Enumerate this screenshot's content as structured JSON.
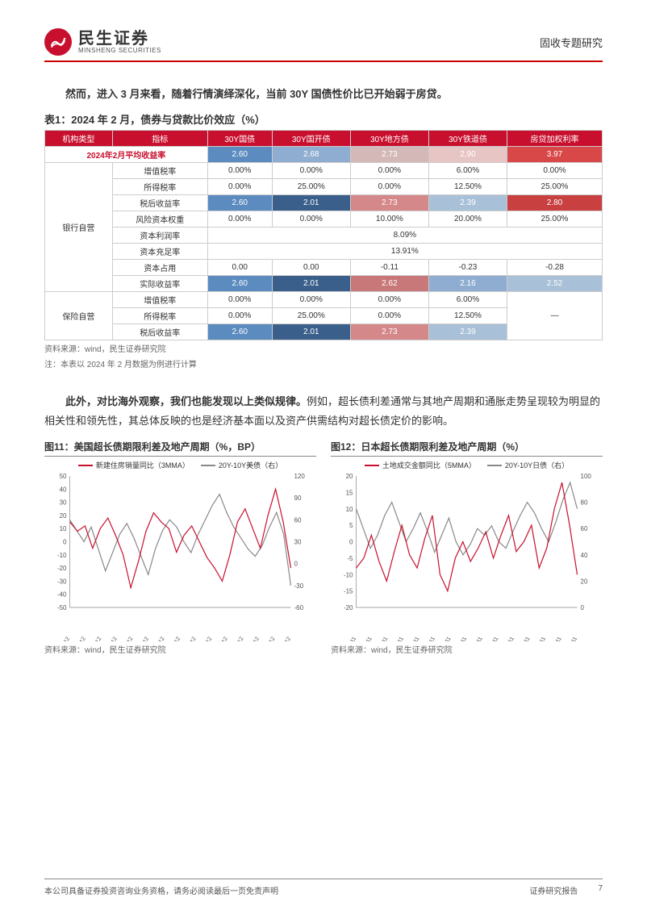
{
  "header": {
    "logo_cn": "民生证券",
    "logo_en": "MINSHENG SECURITIES",
    "doc_type": "固收专题研究"
  },
  "para1_bold": "然而，进入 3 月来看，随着行情演绎深化，当前 30Y 国债性价比已开始弱于房贷。",
  "table1": {
    "title": "表1：2024 年 2 月，债券与贷款比价效应（%）",
    "headers": [
      "机构类型",
      "指标",
      "30Y国债",
      "30Y国开债",
      "30Y地方债",
      "30Y铁道债",
      "房贷加权利率"
    ],
    "avg_row_label": "2024年2月平均收益率",
    "cat1": "银行自营",
    "cat2": "保险自营",
    "rows_bank": [
      {
        "label": "增值税率",
        "v": [
          "0.00%",
          "0.00%",
          "0.00%",
          "6.00%",
          "0.00%"
        ]
      },
      {
        "label": "所得税率",
        "v": [
          "0.00%",
          "25.00%",
          "0.00%",
          "12.50%",
          "25.00%"
        ]
      },
      {
        "label": "税后收益率",
        "v": [
          "2.60",
          "2.01",
          "2.73",
          "2.39",
          "2.80"
        ]
      },
      {
        "label": "风险资本权重",
        "v": [
          "0.00%",
          "0.00%",
          "10.00%",
          "20.00%",
          "25.00%"
        ]
      },
      {
        "label": "资本利润率",
        "v": [
          "",
          "",
          "8.09%",
          "",
          ""
        ]
      },
      {
        "label": "资本充足率",
        "v": [
          "",
          "",
          "13.91%",
          "",
          ""
        ]
      },
      {
        "label": "资本占用",
        "v": [
          "0.00",
          "0.00",
          "-0.11",
          "-0.23",
          "-0.28"
        ]
      },
      {
        "label": "实际收益率",
        "v": [
          "2.60",
          "2.01",
          "2.62",
          "2.16",
          "2.52"
        ]
      }
    ],
    "rows_ins": [
      {
        "label": "增值税率",
        "v": [
          "0.00%",
          "0.00%",
          "0.00%",
          "6.00%",
          ""
        ]
      },
      {
        "label": "所得税率",
        "v": [
          "0.00%",
          "25.00%",
          "0.00%",
          "12.50%",
          "—"
        ]
      },
      {
        "label": "税后收益率",
        "v": [
          "2.60",
          "2.01",
          "2.73",
          "2.39",
          ""
        ]
      }
    ],
    "avg_values": [
      "2.60",
      "2.68",
      "2.73",
      "2.90",
      "3.97"
    ],
    "cell_colors": {
      "avg": [
        "#5b8bbf",
        "#8fadd1",
        "#d4b8b8",
        "#e8c5c5",
        "#d94848"
      ],
      "bank_shouyi": [
        "#5b8bbf",
        "#3a5f8a",
        "#d4888a",
        "#a8c0d8",
        "#c84040"
      ],
      "bank_shiji": [
        "#5b8bbf",
        "#3a5f8a",
        "#c87878",
        "#8fadd1",
        "#a8c0d8"
      ],
      "ins_shouyi": [
        "#5b8bbf",
        "#3a5f8a",
        "#d4888a",
        "#a8c0d8",
        ""
      ]
    },
    "source": "资料来源：wind，民生证券研究院",
    "note": "注：本表以 2024 年 2 月数据为例进行计算"
  },
  "para2": {
    "bold": "此外，对比海外观察，我们也能发现以上类似规律。",
    "rest": "例如，超长债利差通常与其地产周期和通胀走势呈现较为明显的相关性和领先性，其总体反映的也是经济基本面以及资产供需结构对超长债定价的影响。"
  },
  "chart11": {
    "title": "图11：美国超长债期限利差及地产周期（%，BP）",
    "legend": [
      {
        "label": "新建住房销量同比（3MMA）",
        "color": "#c8102e"
      },
      {
        "label": "20Y-10Y美债（右）",
        "color": "#888888"
      }
    ],
    "y_left": {
      "min": -50,
      "max": 50,
      "step": 10
    },
    "y_right": {
      "min": -60,
      "max": 120,
      "step": 30
    },
    "x_labels": [
      "1994/12",
      "1996/12",
      "1998/12",
      "2000/12",
      "2002/12",
      "2004/12",
      "2006/12",
      "2008/12",
      "2010/12",
      "2012/12",
      "2014/12",
      "2016/12",
      "2018/12",
      "2020/12",
      "2022/12"
    ],
    "series_red": [
      15,
      8,
      12,
      -5,
      10,
      18,
      5,
      -10,
      -35,
      -15,
      8,
      22,
      15,
      10,
      -8,
      5,
      12,
      0,
      -12,
      -20,
      -30,
      -10,
      15,
      25,
      10,
      -5,
      20,
      40,
      15,
      -20
    ],
    "series_gray": [
      60,
      45,
      30,
      50,
      20,
      -10,
      15,
      40,
      55,
      35,
      10,
      -15,
      20,
      45,
      60,
      50,
      30,
      15,
      40,
      60,
      80,
      95,
      70,
      50,
      35,
      20,
      10,
      25,
      50,
      70,
      40,
      -30
    ],
    "source": "资料来源：wind，民生证券研究院"
  },
  "chart12": {
    "title": "图12：日本超长债期限利差及地产周期（%）",
    "legend": [
      {
        "label": "土地成交金额同比（5MMA）",
        "color": "#c8102e"
      },
      {
        "label": "20Y-10Y日债（右）",
        "color": "#888888"
      }
    ],
    "y_left": {
      "min": -20,
      "max": 20,
      "step": 5
    },
    "y_right": {
      "min": 0,
      "max": 100,
      "step": 20
    },
    "x_labels": [
      "1994/11",
      "1996/11",
      "1998/11",
      "2000/11",
      "2002/11",
      "2004/11",
      "2006/11",
      "2008/11",
      "2010/11",
      "2012/11",
      "2014/11",
      "2016/11",
      "2018/11",
      "2020/11",
      "2022/11"
    ],
    "series_red": [
      -8,
      -5,
      2,
      -6,
      -12,
      -3,
      5,
      -4,
      -8,
      1,
      8,
      -10,
      -15,
      -5,
      0,
      -6,
      -2,
      3,
      -5,
      2,
      8,
      -3,
      0,
      5,
      -8,
      -2,
      10,
      18,
      5,
      -10
    ],
    "series_gray": [
      75,
      60,
      45,
      55,
      70,
      80,
      65,
      50,
      60,
      72,
      58,
      42,
      55,
      68,
      50,
      40,
      48,
      60,
      55,
      62,
      50,
      45,
      58,
      70,
      80,
      72,
      60,
      50,
      65,
      82,
      95,
      75
    ],
    "source": "资料来源：wind，民生证券研究院"
  },
  "footer": {
    "left": "本公司具备证券投资咨询业务资格，请务必阅读最后一页免责声明",
    "right_label": "证券研究报告",
    "page": "7"
  },
  "colors": {
    "brand_red": "#c8102e",
    "gray_line": "#888888"
  }
}
